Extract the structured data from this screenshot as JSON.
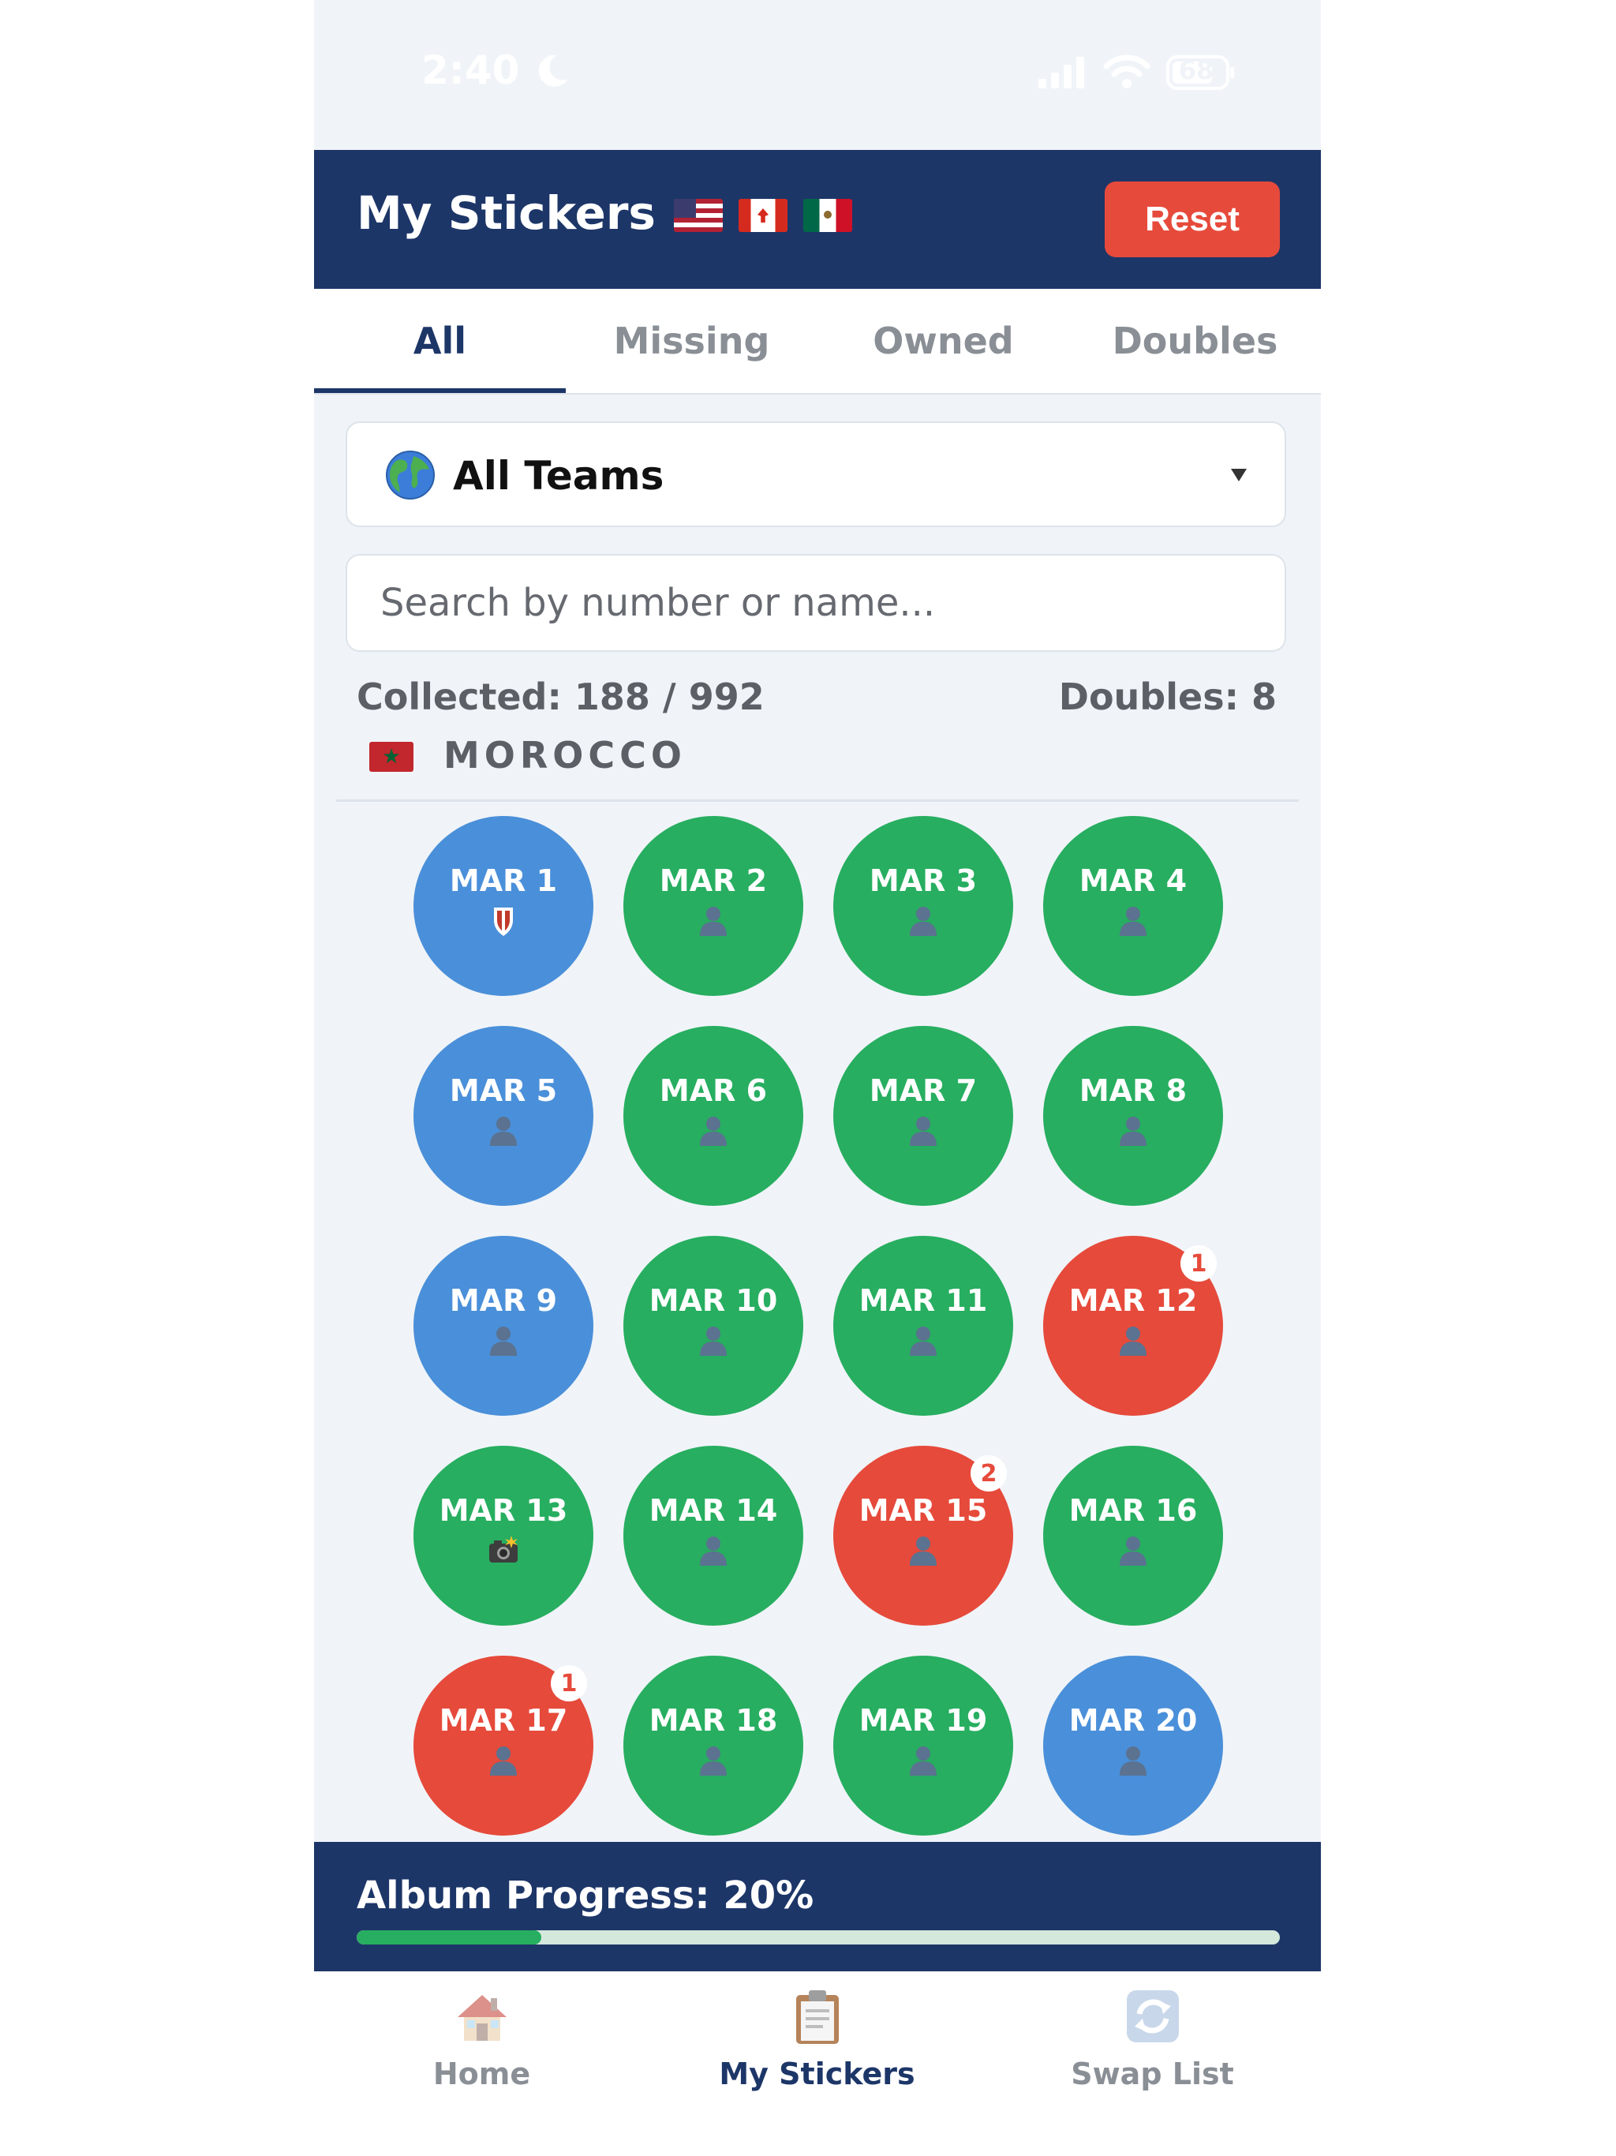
{
  "status_bar": {
    "time": "2:40",
    "battery": "68"
  },
  "header": {
    "title": "My Stickers",
    "reset_label": "Reset"
  },
  "tabs": [
    {
      "label": "All",
      "active": true
    },
    {
      "label": "Missing",
      "active": false
    },
    {
      "label": "Owned",
      "active": false
    },
    {
      "label": "Doubles",
      "active": false
    }
  ],
  "filter": {
    "selected": "All Teams"
  },
  "search": {
    "placeholder": "Search by number or name..."
  },
  "stats": {
    "collected": "Collected: 188 / 992",
    "doubles": "Doubles: 8"
  },
  "team": {
    "name": "MOROCCO"
  },
  "colors": {
    "missing": "#4a8fd9",
    "owned": "#27ae60",
    "double": "#e64a3b"
  },
  "stickers": [
    {
      "label": "MAR 1",
      "status": "missing",
      "icon": "shield-icon"
    },
    {
      "label": "MAR 2",
      "status": "owned",
      "icon": "player-icon"
    },
    {
      "label": "MAR 3",
      "status": "owned",
      "icon": "player-icon"
    },
    {
      "label": "MAR 4",
      "status": "owned",
      "icon": "player-icon"
    },
    {
      "label": "MAR 5",
      "status": "missing",
      "icon": "player-icon"
    },
    {
      "label": "MAR 6",
      "status": "owned",
      "icon": "player-icon"
    },
    {
      "label": "MAR 7",
      "status": "owned",
      "icon": "player-icon"
    },
    {
      "label": "MAR 8",
      "status": "owned",
      "icon": "player-icon"
    },
    {
      "label": "MAR 9",
      "status": "missing",
      "icon": "player-icon"
    },
    {
      "label": "MAR 10",
      "status": "owned",
      "icon": "player-icon"
    },
    {
      "label": "MAR 11",
      "status": "owned",
      "icon": "player-icon"
    },
    {
      "label": "MAR 12",
      "status": "double",
      "icon": "player-icon",
      "count": "1"
    },
    {
      "label": "MAR 13",
      "status": "owned",
      "icon": "camera-icon"
    },
    {
      "label": "MAR 14",
      "status": "owned",
      "icon": "player-icon"
    },
    {
      "label": "MAR 15",
      "status": "double",
      "icon": "player-icon",
      "count": "2"
    },
    {
      "label": "MAR 16",
      "status": "owned",
      "icon": "player-icon"
    },
    {
      "label": "MAR 17",
      "status": "double",
      "icon": "player-icon",
      "count": "1"
    },
    {
      "label": "MAR 18",
      "status": "owned",
      "icon": "player-icon"
    },
    {
      "label": "MAR 19",
      "status": "owned",
      "icon": "player-icon"
    },
    {
      "label": "MAR 20",
      "status": "missing",
      "icon": "player-icon"
    }
  ],
  "progress": {
    "label": "Album Progress: 20%",
    "fraction": 0.2
  },
  "nav": [
    {
      "label": "Home",
      "icon": "house-icon",
      "active": false
    },
    {
      "label": "My Stickers",
      "icon": "clipboard-icon",
      "active": true
    },
    {
      "label": "Swap List",
      "icon": "swap-icon",
      "active": false
    }
  ]
}
